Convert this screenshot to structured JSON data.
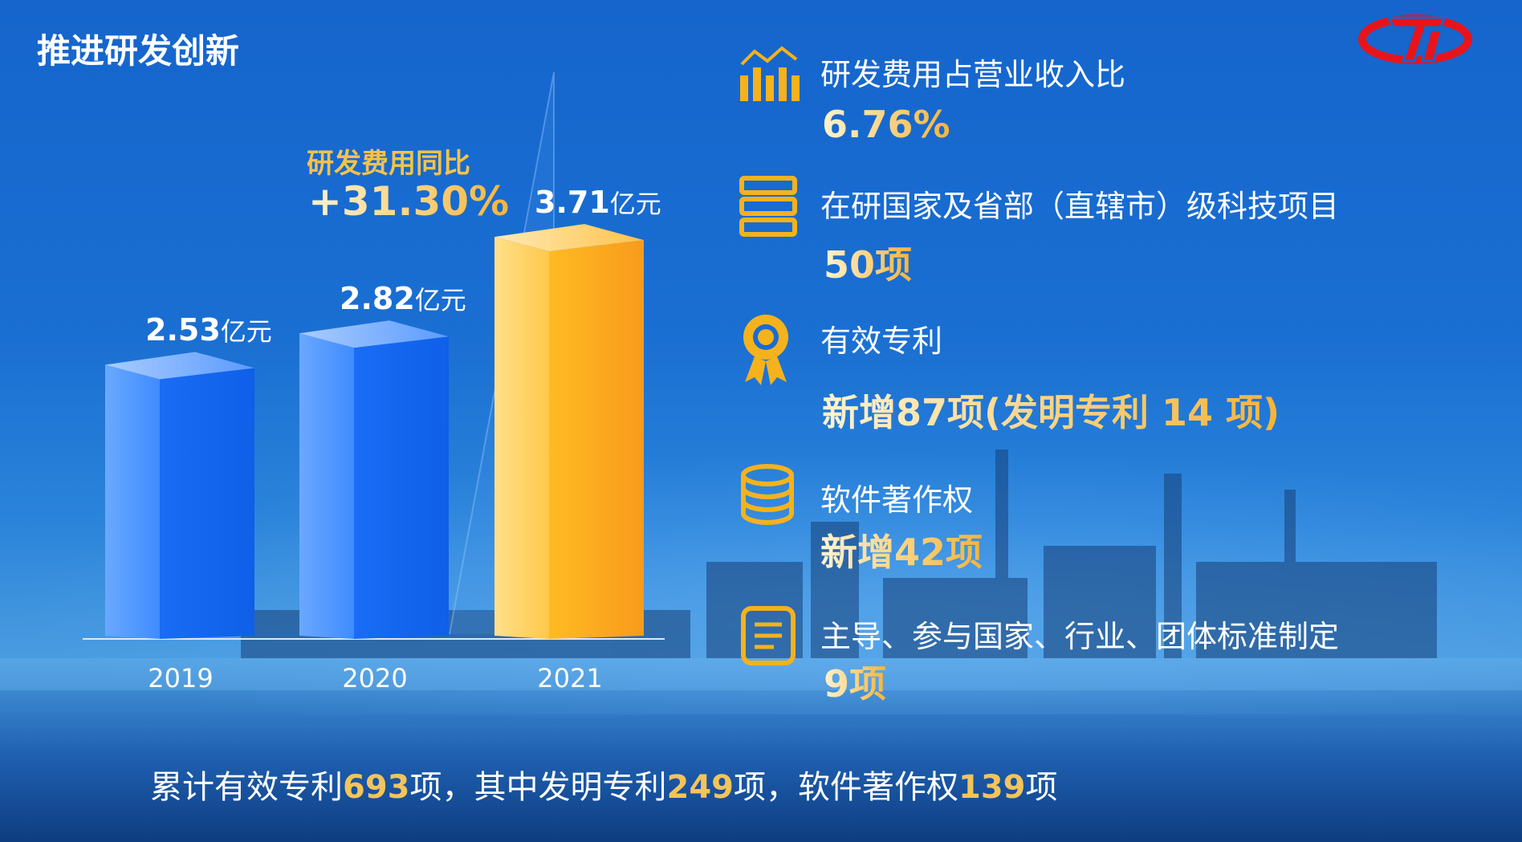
{
  "title": "推进研发创新",
  "yoy": {
    "label": "研发费用同比",
    "value": "+31.30%"
  },
  "chart_data": {
    "type": "bar",
    "categories": [
      "2019",
      "2020",
      "2021"
    ],
    "values": [
      2.53,
      2.82,
      3.71
    ],
    "value_labels": [
      "2.53",
      "2.82",
      "3.71"
    ],
    "unit": "亿元",
    "colors": [
      "#1a6cf5",
      "#1a6cf5",
      "#f8a91e"
    ],
    "ylim": [
      0,
      3.9
    ],
    "grid": false
  },
  "stats": [
    {
      "icon": "bar-chart-icon",
      "label": "研发费用占营业收入比",
      "value": "6.76%"
    },
    {
      "icon": "server-stack-icon",
      "label": "在研国家及省部（直辖市）级科技项目",
      "value": "50项"
    },
    {
      "icon": "award-medal-icon",
      "label": "有效专利",
      "value": "新增87项(发明专利 14 项)"
    },
    {
      "icon": "database-icon",
      "label": "软件著作权",
      "value": "新增42项"
    },
    {
      "icon": "document-list-icon",
      "label": "主导、参与国家、行业、团体标准制定",
      "value": "9项"
    }
  ],
  "summary": {
    "p1": "累计有效专利",
    "n1": "693",
    "p2": "项，其中发明专利",
    "n2": "249",
    "p3": "项，软件著作权",
    "n3": "139",
    "p4": "项"
  },
  "logo": {
    "color": "#e8141b"
  }
}
